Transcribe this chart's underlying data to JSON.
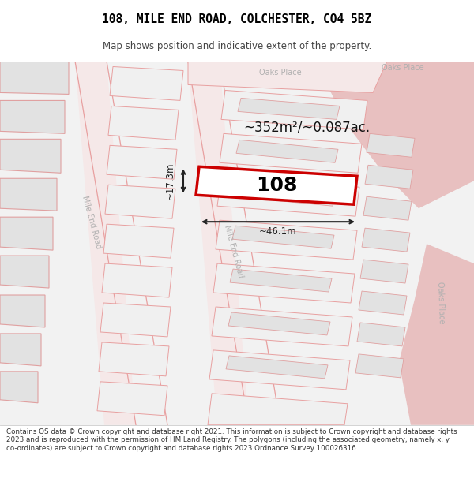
{
  "title": "108, MILE END ROAD, COLCHESTER, CO4 5BZ",
  "subtitle": "Map shows position and indicative extent of the property.",
  "footer": "Contains OS data © Crown copyright and database right 2021. This information is subject to Crown copyright and database rights 2023 and is reproduced with the permission of HM Land Registry. The polygons (including the associated geometry, namely x, y co-ordinates) are subject to Crown copyright and database rights 2023 Ordnance Survey 100026316.",
  "area_label": "~352m²/~0.087ac.",
  "width_label": "~46.1m",
  "height_label": "~17.3m",
  "plot_number": "108",
  "bg_color": "#ffffff",
  "map_bg": "#f2f2f2",
  "road_fill": "#f5e8e8",
  "road_line": "#e8a0a0",
  "highlight_fill": "#e8c0c0",
  "plot_fill": "#ffffff",
  "plot_border": "#cc0000",
  "parcel_fill": "#f0f0f0",
  "parcel_border": "#e8a0a0",
  "building_fill": "#e2e2e2",
  "building_border": "#e0a0a0",
  "road_label_color": "#b0b0b0",
  "dim_color": "#222222",
  "title_color": "#000000",
  "subtitle_color": "#444444",
  "footer_color": "#333333",
  "footer_fontsize": 6.3,
  "title_fontsize": 10.5,
  "subtitle_fontsize": 8.5
}
